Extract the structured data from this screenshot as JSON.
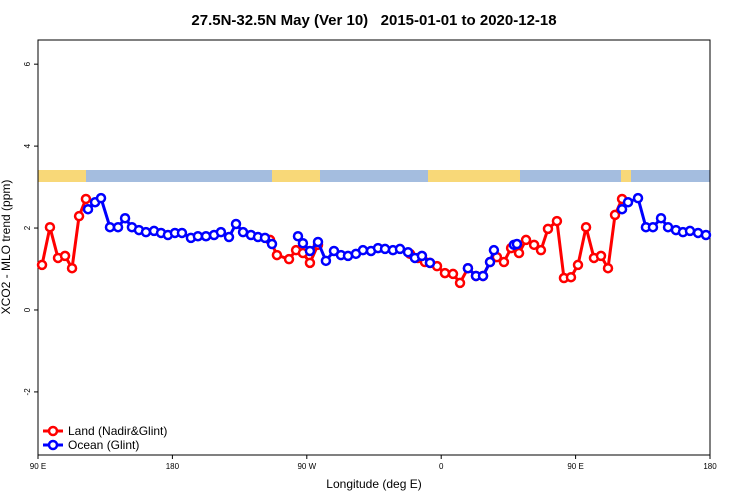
{
  "chart_data": {
    "type": "line",
    "title": "27.5N-32.5N May (Ver 10)   2015-01-01 to 2020-12-18",
    "x_label": "Longitude (deg E)",
    "y_label": "XCO2 - MLO trend (ppm)",
    "xlim": [
      90,
      540
    ],
    "xticks": [
      {
        "value": 90,
        "label": "90 E"
      },
      {
        "value": 180,
        "label": "180"
      },
      {
        "value": 270,
        "label": "90 W"
      },
      {
        "value": 360,
        "label": "0"
      },
      {
        "value": 450,
        "label": "90 E"
      },
      {
        "value": 540,
        "label": "180"
      }
    ],
    "ylim": [
      -3.54,
      6.59
    ],
    "yticks": [
      -2,
      0,
      2,
      4,
      6
    ],
    "legend": "bottom-left",
    "series": [
      {
        "name": "Land (Nadir&Glint)",
        "color": "#ff0000",
        "x": [
          92.7,
          98.0,
          103.4,
          108.1,
          112.8,
          117.5,
          122.1,
          null,
          245.4,
          250.0,
          258.1,
          262.8,
          267.4,
          272.1,
          277.5,
          null,
          339.1,
          344.4,
          349.1,
          352.5,
          357.2,
          362.5,
          367.9,
          372.6,
          377.9,
          383.3,
          388.0,
          392.7,
          397.3,
          402.0,
          406.8,
          412.1,
          416.8,
          422.2,
          426.8,
          431.5,
          437.5,
          442.2,
          446.9,
          451.6,
          457.0,
          462.3,
          467.0,
          471.7,
          476.4,
          481.1
        ],
        "values": [
          1.1,
          2.02,
          1.27,
          1.32,
          1.02,
          2.29,
          2.71,
          null,
          1.71,
          1.34,
          1.24,
          1.46,
          1.39,
          1.15,
          1.59,
          null,
          1.37,
          1.27,
          1.17,
          1.15,
          1.07,
          0.9,
          0.88,
          0.66,
          1.02,
          0.83,
          0.83,
          1.17,
          1.29,
          1.17,
          1.51,
          1.39,
          1.71,
          1.59,
          1.46,
          1.98,
          2.17,
          0.78,
          0.8,
          1.1,
          2.02,
          1.27,
          1.32,
          1.02,
          2.32,
          2.71
        ]
      },
      {
        "name": "Ocean (Glint)",
        "color": "#0000ff",
        "x": [
          123.5,
          128.2,
          132.2,
          138.2,
          143.6,
          148.3,
          152.9,
          157.6,
          162.3,
          167.7,
          172.4,
          177.0,
          181.7,
          186.4,
          192.4,
          197.1,
          202.5,
          207.9,
          212.5,
          217.9,
          222.6,
          227.3,
          232.6,
          237.3,
          242.0,
          246.7,
          null,
          264.1,
          267.4,
          272.1,
          277.5,
          282.8,
          288.2,
          292.9,
          297.6,
          302.9,
          307.6,
          313.0,
          317.7,
          322.4,
          327.7,
          332.4,
          337.8,
          342.4,
          347.1,
          352.5,
          null,
          377.9,
          383.3,
          388.0,
          392.7,
          395.3,
          null,
          408.7,
          410.7,
          null,
          481.1,
          485.1,
          491.8,
          497.1,
          501.8,
          507.2,
          511.9,
          517.2,
          521.9,
          526.6,
          532.0,
          537.3
        ],
        "values": [
          2.46,
          2.63,
          2.73,
          2.02,
          2.02,
          2.24,
          2.02,
          1.95,
          1.9,
          1.93,
          1.88,
          1.83,
          1.88,
          1.88,
          1.76,
          1.8,
          1.8,
          1.83,
          1.9,
          1.78,
          2.1,
          1.9,
          1.83,
          1.78,
          1.76,
          1.61,
          null,
          1.8,
          1.63,
          1.44,
          1.66,
          1.2,
          1.44,
          1.34,
          1.32,
          1.37,
          1.46,
          1.44,
          1.51,
          1.49,
          1.46,
          1.49,
          1.41,
          1.27,
          1.32,
          1.15,
          null,
          1.02,
          0.83,
          0.83,
          1.17,
          1.46,
          null,
          1.59,
          1.61,
          null,
          2.46,
          2.63,
          2.73,
          2.02,
          2.02,
          2.24,
          2.02,
          1.95,
          1.9,
          1.93,
          1.88,
          1.83
        ]
      }
    ]
  }
}
